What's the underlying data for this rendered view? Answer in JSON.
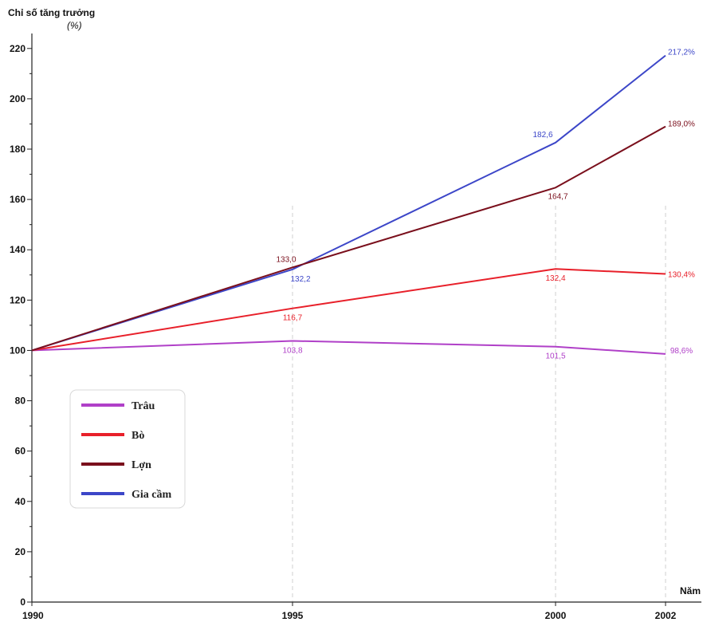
{
  "chart_data": {
    "type": "line",
    "ylabel": "Chỉ số tăng trưởng",
    "yunit": "(%)",
    "xlabel": "Năm",
    "x": [
      1990,
      1995,
      2000,
      2002
    ],
    "x_tick_labels": [
      "1990",
      "1995",
      "2000",
      "2002"
    ],
    "ylim": [
      0,
      225
    ],
    "y_ticks": [
      0,
      20,
      40,
      60,
      80,
      100,
      120,
      140,
      160,
      180,
      200,
      220
    ],
    "grid": false,
    "legend_position": "bottom-left",
    "series": [
      {
        "name": "Trâu",
        "color": "#b040c8",
        "values": [
          100,
          103.8,
          101.5,
          98.6
        ],
        "labels": [
          "",
          "103,8",
          "101,5",
          "98,6%"
        ]
      },
      {
        "name": "Bò",
        "color": "#e8202a",
        "values": [
          100,
          116.7,
          132.4,
          130.4
        ],
        "labels": [
          "",
          "116,7",
          "132,4",
          "130,4%"
        ]
      },
      {
        "name": "Lợn",
        "color": "#7a0f1c",
        "values": [
          100,
          133.0,
          164.7,
          189.0
        ],
        "labels": [
          "",
          "133,0",
          "164,7",
          "189,0%"
        ]
      },
      {
        "name": "Gia cầm",
        "color": "#3c46c8",
        "values": [
          100,
          132.2,
          182.6,
          217.2
        ],
        "labels": [
          "",
          "132,2",
          "182,6",
          "217,2%"
        ]
      }
    ]
  }
}
